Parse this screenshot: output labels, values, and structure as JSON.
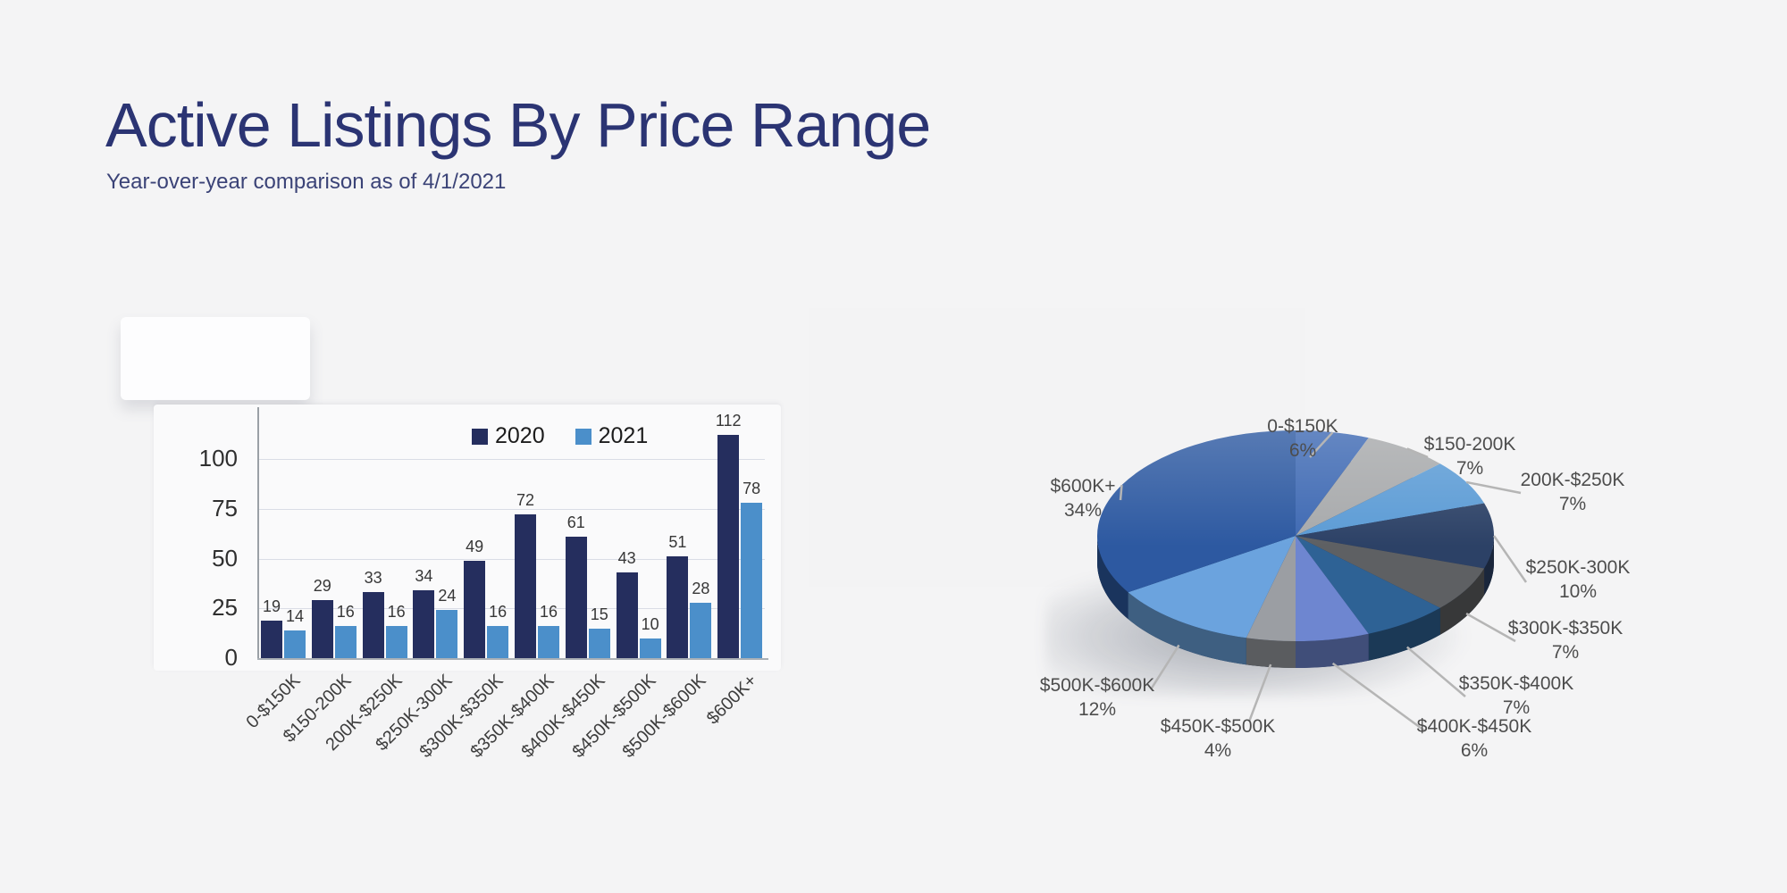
{
  "page": {
    "background": "#f4f4f5"
  },
  "header": {
    "title": "Active Listings By Price Range",
    "subtitle": "Year-over-year comparison as of 4/1/2021",
    "title_color": "#2b3473"
  },
  "chart_data": [
    {
      "type": "bar",
      "title": "",
      "categories": [
        "0-$150K",
        "$150-200K",
        "200K-$250K",
        "$250K-300K",
        "$300K-$350K",
        "$350K-$400K",
        "$400K-$450K",
        "$450K-$500K",
        "$500K-$600K",
        "$600K+"
      ],
      "series": [
        {
          "name": "2020",
          "color": "#252e5e",
          "values": [
            19,
            29,
            33,
            34,
            49,
            72,
            61,
            43,
            51,
            112
          ]
        },
        {
          "name": "2021",
          "color": "#4b8fca",
          "values": [
            14,
            16,
            16,
            24,
            16,
            16,
            15,
            10,
            28,
            78
          ]
        }
      ],
      "ylabel": "",
      "xlabel": "",
      "ylim": [
        0,
        125
      ],
      "yticks": [
        0,
        25,
        50,
        75,
        100
      ],
      "grid": true,
      "legend_position": "top-center",
      "value_labels": true
    },
    {
      "type": "pie",
      "title": "",
      "style": "3d",
      "start_angle": "top",
      "direction": "clockwise",
      "slices": [
        {
          "label": "0-$150K",
          "pct": 6,
          "pct_label": "6%",
          "color": "#3e69b3"
        },
        {
          "label": "$150-200K",
          "pct": 7,
          "pct_label": "7%",
          "color": "#a7a9ab"
        },
        {
          "label": "200K-$250K",
          "pct": 7,
          "pct_label": "7%",
          "color": "#5b9bd5"
        },
        {
          "label": "$250K-300K",
          "pct": 10,
          "pct_label": "10%",
          "color": "#2c4166"
        },
        {
          "label": "$300K-$350K",
          "pct": 7,
          "pct_label": "7%",
          "color": "#5e6063"
        },
        {
          "label": "$350K-$400K",
          "pct": 7,
          "pct_label": "7%",
          "color": "#2e6295"
        },
        {
          "label": "$400K-$450K",
          "pct": 6,
          "pct_label": "6%",
          "color": "#6e86d0"
        },
        {
          "label": "$450K-$500K",
          "pct": 4,
          "pct_label": "4%",
          "color": "#9b9ea3"
        },
        {
          "label": "$500K-$600K",
          "pct": 12,
          "pct_label": "12%",
          "color": "#6ba3de"
        },
        {
          "label": "$600K+",
          "pct": 34,
          "pct_label": "34%",
          "color": "#2d59a1"
        }
      ]
    }
  ]
}
